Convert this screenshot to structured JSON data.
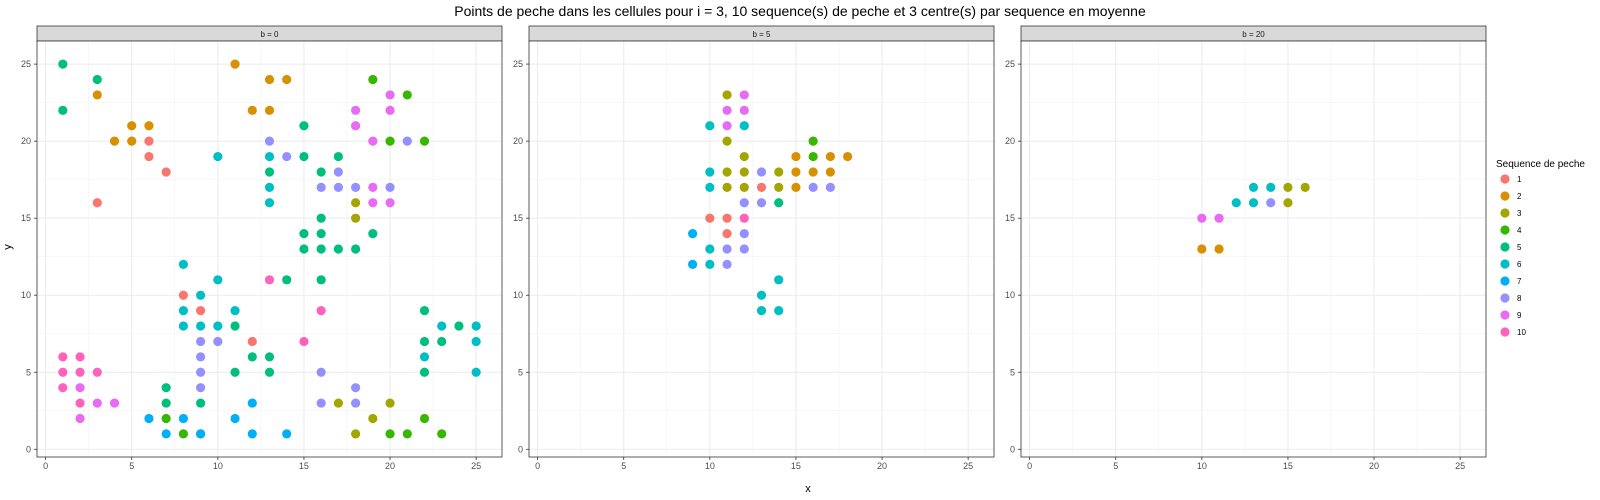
{
  "chart_data": {
    "type": "scatter",
    "title": "Points de peche dans les cellules pour i = 3, 10 sequence(s) de peche et 3 centre(s) par sequence en moyenne",
    "xlabel": "x",
    "ylabel": "y",
    "xlim": [
      -0.5,
      26.5
    ],
    "ylim": [
      -0.5,
      26.5
    ],
    "xticks": [
      0,
      5,
      10,
      15,
      20,
      25
    ],
    "yticks": [
      0,
      5,
      10,
      15,
      20,
      25
    ],
    "grid": true,
    "legend": {
      "title": "Sequence de peche",
      "placement": "right",
      "entries": [
        "1",
        "2",
        "3",
        "4",
        "5",
        "6",
        "7",
        "8",
        "9",
        "10"
      ],
      "colors": [
        "#F8766D",
        "#D89000",
        "#A3A500",
        "#39B600",
        "#00BF7D",
        "#00BFC4",
        "#00B0F6",
        "#9590FF",
        "#E76BF3",
        "#FF62BC"
      ]
    },
    "panels": [
      {
        "label": "b = 0",
        "points": [
          {
            "s": "1",
            "x": 3,
            "y": 16
          },
          {
            "s": "1",
            "x": 6,
            "y": 19
          },
          {
            "s": "1",
            "x": 6,
            "y": 20
          },
          {
            "s": "1",
            "x": 7,
            "y": 18
          },
          {
            "s": "1",
            "x": 8,
            "y": 10
          },
          {
            "s": "1",
            "x": 9,
            "y": 9
          },
          {
            "s": "1",
            "x": 12,
            "y": 7
          },
          {
            "s": "2",
            "x": 3,
            "y": 23
          },
          {
            "s": "2",
            "x": 4,
            "y": 20
          },
          {
            "s": "2",
            "x": 5,
            "y": 20
          },
          {
            "s": "2",
            "x": 5,
            "y": 21
          },
          {
            "s": "2",
            "x": 6,
            "y": 21
          },
          {
            "s": "2",
            "x": 11,
            "y": 25
          },
          {
            "s": "2",
            "x": 12,
            "y": 22
          },
          {
            "s": "2",
            "x": 13,
            "y": 22
          },
          {
            "s": "2",
            "x": 13,
            "y": 24
          },
          {
            "s": "2",
            "x": 14,
            "y": 24
          },
          {
            "s": "3",
            "x": 17,
            "y": 3
          },
          {
            "s": "3",
            "x": 18,
            "y": 1
          },
          {
            "s": "3",
            "x": 18,
            "y": 15
          },
          {
            "s": "3",
            "x": 18,
            "y": 16
          },
          {
            "s": "3",
            "x": 19,
            "y": 2
          },
          {
            "s": "3",
            "x": 20,
            "y": 3
          },
          {
            "s": "4",
            "x": 7,
            "y": 2
          },
          {
            "s": "4",
            "x": 8,
            "y": 1
          },
          {
            "s": "4",
            "x": 9,
            "y": 1
          },
          {
            "s": "4",
            "x": 19,
            "y": 24
          },
          {
            "s": "4",
            "x": 20,
            "y": 1
          },
          {
            "s": "4",
            "x": 20,
            "y": 20
          },
          {
            "s": "4",
            "x": 21,
            "y": 1
          },
          {
            "s": "4",
            "x": 21,
            "y": 23
          },
          {
            "s": "4",
            "x": 22,
            "y": 2
          },
          {
            "s": "4",
            "x": 22,
            "y": 20
          },
          {
            "s": "4",
            "x": 23,
            "y": 1
          },
          {
            "s": "5",
            "x": 1,
            "y": 22
          },
          {
            "s": "5",
            "x": 1,
            "y": 25
          },
          {
            "s": "5",
            "x": 3,
            "y": 24
          },
          {
            "s": "5",
            "x": 7,
            "y": 3
          },
          {
            "s": "5",
            "x": 7,
            "y": 4
          },
          {
            "s": "5",
            "x": 9,
            "y": 3
          },
          {
            "s": "5",
            "x": 11,
            "y": 5
          },
          {
            "s": "5",
            "x": 11,
            "y": 8
          },
          {
            "s": "5",
            "x": 12,
            "y": 6
          },
          {
            "s": "5",
            "x": 13,
            "y": 5
          },
          {
            "s": "5",
            "x": 13,
            "y": 6
          },
          {
            "s": "5",
            "x": 13,
            "y": 18
          },
          {
            "s": "5",
            "x": 14,
            "y": 11
          },
          {
            "s": "5",
            "x": 15,
            "y": 13
          },
          {
            "s": "5",
            "x": 15,
            "y": 14
          },
          {
            "s": "5",
            "x": 15,
            "y": 19
          },
          {
            "s": "5",
            "x": 15,
            "y": 21
          },
          {
            "s": "5",
            "x": 16,
            "y": 11
          },
          {
            "s": "5",
            "x": 16,
            "y": 13
          },
          {
            "s": "5",
            "x": 16,
            "y": 14
          },
          {
            "s": "5",
            "x": 16,
            "y": 15
          },
          {
            "s": "5",
            "x": 16,
            "y": 18
          },
          {
            "s": "5",
            "x": 17,
            "y": 13
          },
          {
            "s": "5",
            "x": 17,
            "y": 19
          },
          {
            "s": "5",
            "x": 18,
            "y": 13
          },
          {
            "s": "5",
            "x": 19,
            "y": 14
          },
          {
            "s": "5",
            "x": 22,
            "y": 5
          },
          {
            "s": "5",
            "x": 22,
            "y": 7
          },
          {
            "s": "5",
            "x": 22,
            "y": 9
          },
          {
            "s": "5",
            "x": 23,
            "y": 7
          },
          {
            "s": "5",
            "x": 24,
            "y": 8
          },
          {
            "s": "6",
            "x": 8,
            "y": 8
          },
          {
            "s": "6",
            "x": 8,
            "y": 9
          },
          {
            "s": "6",
            "x": 8,
            "y": 12
          },
          {
            "s": "6",
            "x": 9,
            "y": 8
          },
          {
            "s": "6",
            "x": 9,
            "y": 10
          },
          {
            "s": "6",
            "x": 10,
            "y": 8
          },
          {
            "s": "6",
            "x": 10,
            "y": 11
          },
          {
            "s": "6",
            "x": 10,
            "y": 19
          },
          {
            "s": "6",
            "x": 11,
            "y": 9
          },
          {
            "s": "6",
            "x": 13,
            "y": 16
          },
          {
            "s": "6",
            "x": 13,
            "y": 17
          },
          {
            "s": "6",
            "x": 13,
            "y": 19
          },
          {
            "s": "6",
            "x": 22,
            "y": 6
          },
          {
            "s": "6",
            "x": 23,
            "y": 8
          },
          {
            "s": "6",
            "x": 25,
            "y": 5
          },
          {
            "s": "6",
            "x": 25,
            "y": 7
          },
          {
            "s": "6",
            "x": 25,
            "y": 8
          },
          {
            "s": "7",
            "x": 6,
            "y": 2
          },
          {
            "s": "7",
            "x": 7,
            "y": 1
          },
          {
            "s": "7",
            "x": 8,
            "y": 2
          },
          {
            "s": "7",
            "x": 9,
            "y": 1
          },
          {
            "s": "7",
            "x": 11,
            "y": 2
          },
          {
            "s": "7",
            "x": 12,
            "y": 1
          },
          {
            "s": "7",
            "x": 12,
            "y": 3
          },
          {
            "s": "7",
            "x": 14,
            "y": 1
          },
          {
            "s": "8",
            "x": 9,
            "y": 4
          },
          {
            "s": "8",
            "x": 9,
            "y": 5
          },
          {
            "s": "8",
            "x": 9,
            "y": 6
          },
          {
            "s": "8",
            "x": 9,
            "y": 7
          },
          {
            "s": "8",
            "x": 10,
            "y": 7
          },
          {
            "s": "8",
            "x": 13,
            "y": 20
          },
          {
            "s": "8",
            "x": 14,
            "y": 19
          },
          {
            "s": "8",
            "x": 16,
            "y": 3
          },
          {
            "s": "8",
            "x": 16,
            "y": 5
          },
          {
            "s": "8",
            "x": 16,
            "y": 17
          },
          {
            "s": "8",
            "x": 17,
            "y": 17
          },
          {
            "s": "8",
            "x": 17,
            "y": 18
          },
          {
            "s": "8",
            "x": 18,
            "y": 3
          },
          {
            "s": "8",
            "x": 18,
            "y": 4
          },
          {
            "s": "8",
            "x": 18,
            "y": 17
          },
          {
            "s": "8",
            "x": 20,
            "y": 17
          },
          {
            "s": "8",
            "x": 21,
            "y": 20
          },
          {
            "s": "9",
            "x": 2,
            "y": 2
          },
          {
            "s": "9",
            "x": 2,
            "y": 4
          },
          {
            "s": "9",
            "x": 3,
            "y": 3
          },
          {
            "s": "9",
            "x": 4,
            "y": 3
          },
          {
            "s": "9",
            "x": 18,
            "y": 21
          },
          {
            "s": "9",
            "x": 18,
            "y": 22
          },
          {
            "s": "9",
            "x": 19,
            "y": 16
          },
          {
            "s": "9",
            "x": 19,
            "y": 17
          },
          {
            "s": "9",
            "x": 19,
            "y": 20
          },
          {
            "s": "9",
            "x": 20,
            "y": 16
          },
          {
            "s": "9",
            "x": 20,
            "y": 22
          },
          {
            "s": "9",
            "x": 20,
            "y": 23
          },
          {
            "s": "10",
            "x": 1,
            "y": 4
          },
          {
            "s": "10",
            "x": 1,
            "y": 5
          },
          {
            "s": "10",
            "x": 1,
            "y": 6
          },
          {
            "s": "10",
            "x": 2,
            "y": 3
          },
          {
            "s": "10",
            "x": 2,
            "y": 5
          },
          {
            "s": "10",
            "x": 2,
            "y": 6
          },
          {
            "s": "10",
            "x": 3,
            "y": 5
          },
          {
            "s": "10",
            "x": 13,
            "y": 11
          },
          {
            "s": "10",
            "x": 15,
            "y": 7
          },
          {
            "s": "10",
            "x": 16,
            "y": 9
          }
        ]
      },
      {
        "label": "b = 5",
        "points": [
          {
            "s": "1",
            "x": 10,
            "y": 15
          },
          {
            "s": "1",
            "x": 11,
            "y": 14
          },
          {
            "s": "1",
            "x": 11,
            "y": 15
          },
          {
            "s": "1",
            "x": 13,
            "y": 17
          },
          {
            "s": "2",
            "x": 15,
            "y": 17
          },
          {
            "s": "2",
            "x": 15,
            "y": 18
          },
          {
            "s": "2",
            "x": 15,
            "y": 19
          },
          {
            "s": "2",
            "x": 16,
            "y": 18
          },
          {
            "s": "2",
            "x": 17,
            "y": 18
          },
          {
            "s": "2",
            "x": 17,
            "y": 19
          },
          {
            "s": "2",
            "x": 18,
            "y": 19
          },
          {
            "s": "3",
            "x": 11,
            "y": 17
          },
          {
            "s": "3",
            "x": 11,
            "y": 18
          },
          {
            "s": "3",
            "x": 11,
            "y": 20
          },
          {
            "s": "3",
            "x": 11,
            "y": 23
          },
          {
            "s": "3",
            "x": 12,
            "y": 17
          },
          {
            "s": "3",
            "x": 12,
            "y": 18
          },
          {
            "s": "3",
            "x": 12,
            "y": 19
          },
          {
            "s": "3",
            "x": 14,
            "y": 17
          },
          {
            "s": "3",
            "x": 14,
            "y": 18
          },
          {
            "s": "4",
            "x": 16,
            "y": 19
          },
          {
            "s": "4",
            "x": 16,
            "y": 20
          },
          {
            "s": "5",
            "x": 14,
            "y": 16
          },
          {
            "s": "6",
            "x": 10,
            "y": 12
          },
          {
            "s": "6",
            "x": 10,
            "y": 13
          },
          {
            "s": "6",
            "x": 10,
            "y": 17
          },
          {
            "s": "6",
            "x": 10,
            "y": 18
          },
          {
            "s": "6",
            "x": 10,
            "y": 21
          },
          {
            "s": "6",
            "x": 12,
            "y": 21
          },
          {
            "s": "6",
            "x": 13,
            "y": 9
          },
          {
            "s": "6",
            "x": 13,
            "y": 10
          },
          {
            "s": "6",
            "x": 14,
            "y": 9
          },
          {
            "s": "6",
            "x": 14,
            "y": 11
          },
          {
            "s": "7",
            "x": 9,
            "y": 12
          },
          {
            "s": "7",
            "x": 9,
            "y": 14
          },
          {
            "s": "8",
            "x": 11,
            "y": 12
          },
          {
            "s": "8",
            "x": 11,
            "y": 13
          },
          {
            "s": "8",
            "x": 12,
            "y": 13
          },
          {
            "s": "8",
            "x": 12,
            "y": 14
          },
          {
            "s": "8",
            "x": 12,
            "y": 16
          },
          {
            "s": "8",
            "x": 13,
            "y": 16
          },
          {
            "s": "8",
            "x": 13,
            "y": 18
          },
          {
            "s": "8",
            "x": 16,
            "y": 17
          },
          {
            "s": "8",
            "x": 17,
            "y": 17
          },
          {
            "s": "9",
            "x": 11,
            "y": 21
          },
          {
            "s": "9",
            "x": 11,
            "y": 22
          },
          {
            "s": "9",
            "x": 12,
            "y": 22
          },
          {
            "s": "9",
            "x": 12,
            "y": 23
          },
          {
            "s": "10",
            "x": 12,
            "y": 15
          }
        ]
      },
      {
        "label": "b = 20",
        "points": [
          {
            "s": "2",
            "x": 10,
            "y": 13
          },
          {
            "s": "2",
            "x": 11,
            "y": 13
          },
          {
            "s": "3",
            "x": 15,
            "y": 16
          },
          {
            "s": "3",
            "x": 15,
            "y": 17
          },
          {
            "s": "3",
            "x": 16,
            "y": 17
          },
          {
            "s": "6",
            "x": 12,
            "y": 16
          },
          {
            "s": "6",
            "x": 13,
            "y": 16
          },
          {
            "s": "6",
            "x": 13,
            "y": 17
          },
          {
            "s": "6",
            "x": 14,
            "y": 17
          },
          {
            "s": "8",
            "x": 14,
            "y": 16
          },
          {
            "s": "9",
            "x": 10,
            "y": 15
          },
          {
            "s": "9",
            "x": 11,
            "y": 15
          }
        ]
      }
    ]
  }
}
